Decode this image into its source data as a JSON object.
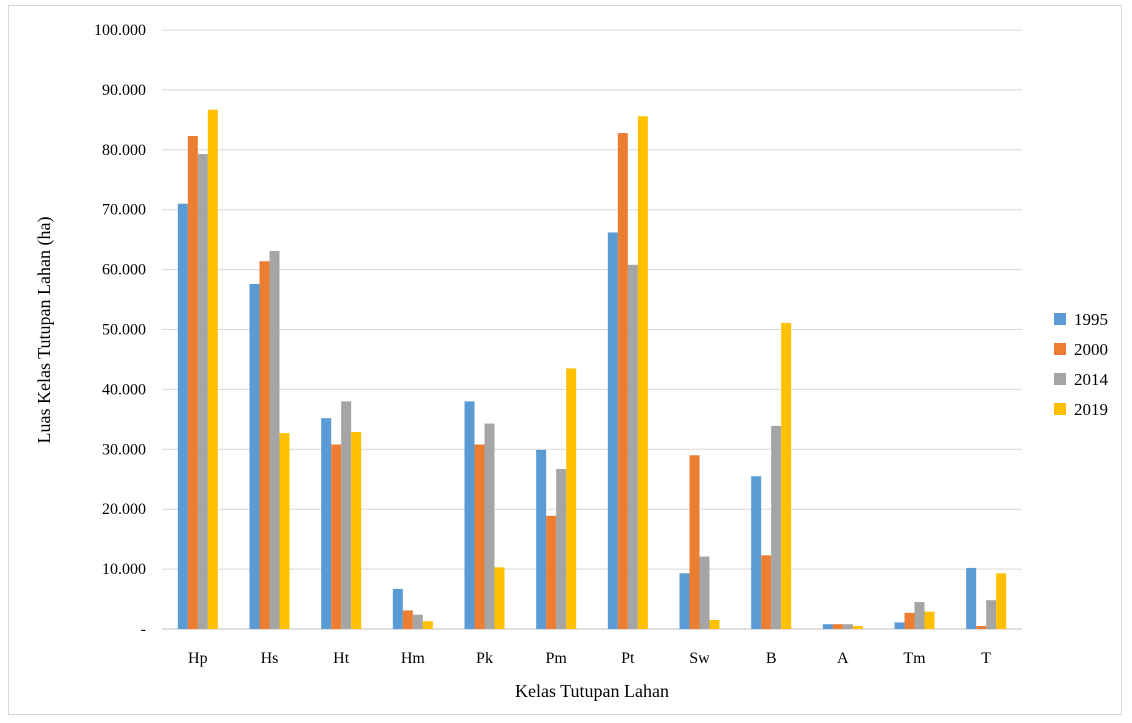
{
  "chart_data": {
    "type": "bar",
    "title": "",
    "xlabel": "Kelas Tutupan Lahan",
    "ylabel": "Luas Kelas Tutupan Lahan (ha)",
    "categories": [
      "Hp",
      "Hs",
      "Ht",
      "Hm",
      "Pk",
      "Pm",
      "Pt",
      "Sw",
      "B",
      "A",
      "Tm",
      "T"
    ],
    "ylim": [
      0,
      100000
    ],
    "yticks": [
      0,
      10000,
      20000,
      30000,
      40000,
      50000,
      60000,
      70000,
      80000,
      90000,
      100000
    ],
    "ytick_labels": [
      "-",
      "10.000",
      "20.000",
      "30.000",
      "40.000",
      "50.000",
      "60.000",
      "70.000",
      "80.000",
      "90.000",
      "100.000"
    ],
    "grid": true,
    "legend_position": "right",
    "series": [
      {
        "name": "1995",
        "color": "#5B9BD5",
        "values": [
          71000,
          57600,
          35200,
          6700,
          38000,
          29900,
          66200,
          9300,
          25500,
          800,
          1100,
          10200
        ]
      },
      {
        "name": "2000",
        "color": "#ED7D31",
        "values": [
          82300,
          61400,
          30800,
          3100,
          30800,
          18900,
          82800,
          29000,
          12300,
          800,
          2700,
          500
        ]
      },
      {
        "name": "2014",
        "color": "#A5A5A5",
        "values": [
          79300,
          63100,
          38000,
          2400,
          34300,
          26700,
          60800,
          12100,
          33900,
          800,
          4500,
          4800
        ]
      },
      {
        "name": "2019",
        "color": "#FFC000",
        "values": [
          86700,
          32700,
          32900,
          1300,
          10300,
          43500,
          85600,
          1500,
          51100,
          500,
          2900,
          9300
        ]
      }
    ]
  }
}
